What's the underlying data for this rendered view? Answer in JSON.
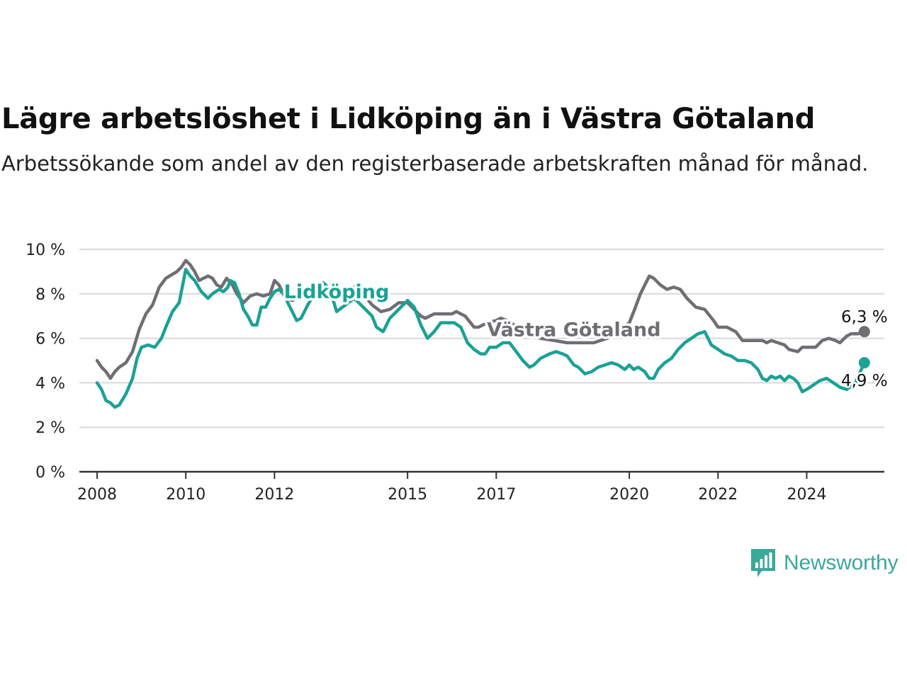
{
  "header": {
    "title": "Lägre arbetslöshet i Lidköping än i Västra Götaland",
    "subtitle": "Arbetssökande som andel av den registerbaserade arbetskraften månad för månad."
  },
  "brand": {
    "name": "Newsworthy",
    "icon": "newsworthy-logo-icon",
    "color": "#3aa89a"
  },
  "chart_data": {
    "type": "line",
    "title": "Lägre arbetslöshet i Lidköping än i Västra Götaland",
    "subtitle": "Arbetssökande som andel av den registerbaserade arbetskraften månad för månad.",
    "xlabel": "",
    "ylabel": "",
    "xlim": [
      2007.6,
      2025.75
    ],
    "ylim": [
      0,
      10
    ],
    "x_ticks": [
      2008,
      2010,
      2012,
      2015,
      2017,
      2020,
      2022,
      2024
    ],
    "x_tick_labels": [
      "2008",
      "2010",
      "2012",
      "2015",
      "2017",
      "2020",
      "2022",
      "2024"
    ],
    "y_ticks": [
      0,
      2,
      4,
      6,
      8,
      10
    ],
    "y_tick_labels": [
      "0 %",
      "2 %",
      "4 %",
      "6 %",
      "8 %",
      "10 %"
    ],
    "grid": true,
    "legend": "inline labels",
    "series": [
      {
        "name": "Västra Götaland",
        "color": "#6f6e73",
        "end_label": "6,3 %",
        "points": [
          [
            2008.0,
            5.0
          ],
          [
            2008.1,
            4.7
          ],
          [
            2008.2,
            4.5
          ],
          [
            2008.3,
            4.2
          ],
          [
            2008.4,
            4.5
          ],
          [
            2008.5,
            4.7
          ],
          [
            2008.65,
            4.9
          ],
          [
            2008.8,
            5.4
          ],
          [
            2008.95,
            6.4
          ],
          [
            2009.1,
            7.1
          ],
          [
            2009.25,
            7.5
          ],
          [
            2009.4,
            8.3
          ],
          [
            2009.55,
            8.7
          ],
          [
            2009.8,
            9.0
          ],
          [
            2009.9,
            9.2
          ],
          [
            2010.0,
            9.5
          ],
          [
            2010.1,
            9.3
          ],
          [
            2010.2,
            9.0
          ],
          [
            2010.3,
            8.6
          ],
          [
            2010.4,
            8.7
          ],
          [
            2010.5,
            8.8
          ],
          [
            2010.6,
            8.7
          ],
          [
            2010.7,
            8.4
          ],
          [
            2010.8,
            8.3
          ],
          [
            2010.92,
            8.7
          ],
          [
            2011.05,
            8.4
          ],
          [
            2011.15,
            8.0
          ],
          [
            2011.3,
            7.6
          ],
          [
            2011.45,
            7.9
          ],
          [
            2011.6,
            8.0
          ],
          [
            2011.75,
            7.9
          ],
          [
            2011.9,
            8.0
          ],
          [
            2012.0,
            8.6
          ],
          [
            2012.1,
            8.4
          ],
          [
            2012.25,
            7.8
          ],
          [
            2012.4,
            7.7
          ],
          [
            2012.6,
            7.9
          ],
          [
            2012.8,
            8.3
          ],
          [
            2013.0,
            8.5
          ],
          [
            2013.2,
            8.2
          ],
          [
            2013.4,
            8.1
          ],
          [
            2013.6,
            8.2
          ],
          [
            2013.8,
            8.3
          ],
          [
            2014.0,
            8.0
          ],
          [
            2014.2,
            7.5
          ],
          [
            2014.4,
            7.2
          ],
          [
            2014.6,
            7.3
          ],
          [
            2014.8,
            7.6
          ],
          [
            2015.0,
            7.6
          ],
          [
            2015.1,
            7.4
          ],
          [
            2015.3,
            7.0
          ],
          [
            2015.4,
            6.9
          ],
          [
            2015.6,
            7.1
          ],
          [
            2015.8,
            7.1
          ],
          [
            2016.0,
            7.1
          ],
          [
            2016.1,
            7.2
          ],
          [
            2016.3,
            7.0
          ],
          [
            2016.5,
            6.5
          ],
          [
            2016.6,
            6.5
          ],
          [
            2016.8,
            6.7
          ],
          [
            2017.0,
            6.8
          ],
          [
            2017.1,
            6.9
          ],
          [
            2017.25,
            6.8
          ],
          [
            2017.4,
            6.6
          ],
          [
            2017.6,
            6.4
          ],
          [
            2017.8,
            6.2
          ],
          [
            2018.0,
            6.0
          ],
          [
            2018.3,
            5.9
          ],
          [
            2018.6,
            5.8
          ],
          [
            2018.9,
            5.8
          ],
          [
            2019.2,
            5.8
          ],
          [
            2019.5,
            6.0
          ],
          [
            2019.8,
            6.4
          ],
          [
            2020.0,
            6.7
          ],
          [
            2020.1,
            7.2
          ],
          [
            2020.25,
            8.0
          ],
          [
            2020.45,
            8.8
          ],
          [
            2020.55,
            8.7
          ],
          [
            2020.7,
            8.4
          ],
          [
            2020.85,
            8.2
          ],
          [
            2021.0,
            8.3
          ],
          [
            2021.15,
            8.2
          ],
          [
            2021.3,
            7.8
          ],
          [
            2021.5,
            7.4
          ],
          [
            2021.7,
            7.3
          ],
          [
            2021.9,
            6.8
          ],
          [
            2022.0,
            6.5
          ],
          [
            2022.2,
            6.5
          ],
          [
            2022.4,
            6.3
          ],
          [
            2022.55,
            5.9
          ],
          [
            2022.8,
            5.9
          ],
          [
            2023.0,
            5.9
          ],
          [
            2023.1,
            5.8
          ],
          [
            2023.2,
            5.9
          ],
          [
            2023.35,
            5.8
          ],
          [
            2023.5,
            5.7
          ],
          [
            2023.6,
            5.5
          ],
          [
            2023.8,
            5.4
          ],
          [
            2023.9,
            5.6
          ],
          [
            2024.0,
            5.6
          ],
          [
            2024.2,
            5.6
          ],
          [
            2024.35,
            5.9
          ],
          [
            2024.5,
            6.0
          ],
          [
            2024.65,
            5.9
          ],
          [
            2024.75,
            5.8
          ],
          [
            2024.9,
            6.1
          ],
          [
            2025.0,
            6.2
          ],
          [
            2025.15,
            6.2
          ],
          [
            2025.3,
            6.3
          ]
        ]
      },
      {
        "name": "Lidköping",
        "color": "#1ba196",
        "end_label": "4,9 %",
        "points": [
          [
            2008.0,
            4.0
          ],
          [
            2008.1,
            3.7
          ],
          [
            2008.2,
            3.2
          ],
          [
            2008.3,
            3.1
          ],
          [
            2008.4,
            2.9
          ],
          [
            2008.5,
            3.0
          ],
          [
            2008.65,
            3.5
          ],
          [
            2008.8,
            4.2
          ],
          [
            2008.9,
            5.1
          ],
          [
            2009.0,
            5.6
          ],
          [
            2009.15,
            5.7
          ],
          [
            2009.3,
            5.6
          ],
          [
            2009.45,
            6.0
          ],
          [
            2009.55,
            6.5
          ],
          [
            2009.7,
            7.2
          ],
          [
            2009.85,
            7.6
          ],
          [
            2010.0,
            9.1
          ],
          [
            2010.1,
            8.8
          ],
          [
            2010.2,
            8.6
          ],
          [
            2010.35,
            8.1
          ],
          [
            2010.5,
            7.8
          ],
          [
            2010.6,
            8.0
          ],
          [
            2010.75,
            8.2
          ],
          [
            2010.85,
            8.1
          ],
          [
            2010.95,
            8.3
          ],
          [
            2011.0,
            8.6
          ],
          [
            2011.1,
            8.5
          ],
          [
            2011.2,
            8.0
          ],
          [
            2011.3,
            7.3
          ],
          [
            2011.4,
            7.0
          ],
          [
            2011.5,
            6.6
          ],
          [
            2011.6,
            6.6
          ],
          [
            2011.7,
            7.4
          ],
          [
            2011.8,
            7.4
          ],
          [
            2011.9,
            7.8
          ],
          [
            2012.0,
            8.1
          ],
          [
            2012.1,
            8.2
          ],
          [
            2012.2,
            8.0
          ],
          [
            2012.35,
            7.4
          ],
          [
            2012.5,
            6.8
          ],
          [
            2012.6,
            6.9
          ],
          [
            2012.75,
            7.5
          ],
          [
            2012.9,
            8.0
          ],
          [
            2013.1,
            8.5
          ],
          [
            2013.25,
            8.2
          ],
          [
            2013.4,
            7.2
          ],
          [
            2013.6,
            7.5
          ],
          [
            2013.8,
            7.8
          ],
          [
            2014.0,
            7.4
          ],
          [
            2014.2,
            7.0
          ],
          [
            2014.3,
            6.5
          ],
          [
            2014.45,
            6.3
          ],
          [
            2014.6,
            6.9
          ],
          [
            2014.75,
            7.2
          ],
          [
            2014.9,
            7.5
          ],
          [
            2015.0,
            7.7
          ],
          [
            2015.15,
            7.4
          ],
          [
            2015.3,
            6.6
          ],
          [
            2015.45,
            6.0
          ],
          [
            2015.6,
            6.3
          ],
          [
            2015.75,
            6.7
          ],
          [
            2015.9,
            6.7
          ],
          [
            2016.05,
            6.7
          ],
          [
            2016.2,
            6.5
          ],
          [
            2016.35,
            5.8
          ],
          [
            2016.5,
            5.5
          ],
          [
            2016.65,
            5.3
          ],
          [
            2016.75,
            5.3
          ],
          [
            2016.85,
            5.6
          ],
          [
            2017.0,
            5.6
          ],
          [
            2017.15,
            5.8
          ],
          [
            2017.3,
            5.8
          ],
          [
            2017.45,
            5.4
          ],
          [
            2017.6,
            5.0
          ],
          [
            2017.75,
            4.7
          ],
          [
            2017.85,
            4.8
          ],
          [
            2018.0,
            5.1
          ],
          [
            2018.2,
            5.3
          ],
          [
            2018.35,
            5.4
          ],
          [
            2018.5,
            5.3
          ],
          [
            2018.6,
            5.2
          ],
          [
            2018.75,
            4.8
          ],
          [
            2018.85,
            4.7
          ],
          [
            2019.0,
            4.4
          ],
          [
            2019.15,
            4.5
          ],
          [
            2019.3,
            4.7
          ],
          [
            2019.45,
            4.8
          ],
          [
            2019.6,
            4.9
          ],
          [
            2019.75,
            4.8
          ],
          [
            2019.9,
            4.6
          ],
          [
            2020.0,
            4.8
          ],
          [
            2020.1,
            4.6
          ],
          [
            2020.2,
            4.7
          ],
          [
            2020.35,
            4.5
          ],
          [
            2020.45,
            4.2
          ],
          [
            2020.55,
            4.2
          ],
          [
            2020.65,
            4.6
          ],
          [
            2020.8,
            4.9
          ],
          [
            2020.95,
            5.1
          ],
          [
            2021.1,
            5.5
          ],
          [
            2021.25,
            5.8
          ],
          [
            2021.4,
            6.0
          ],
          [
            2021.55,
            6.2
          ],
          [
            2021.7,
            6.3
          ],
          [
            2021.85,
            5.7
          ],
          [
            2022.0,
            5.5
          ],
          [
            2022.15,
            5.3
          ],
          [
            2022.3,
            5.2
          ],
          [
            2022.45,
            5.0
          ],
          [
            2022.6,
            5.0
          ],
          [
            2022.75,
            4.9
          ],
          [
            2022.9,
            4.6
          ],
          [
            2023.0,
            4.2
          ],
          [
            2023.1,
            4.1
          ],
          [
            2023.2,
            4.3
          ],
          [
            2023.3,
            4.2
          ],
          [
            2023.4,
            4.3
          ],
          [
            2023.5,
            4.1
          ],
          [
            2023.6,
            4.3
          ],
          [
            2023.7,
            4.2
          ],
          [
            2023.8,
            4.0
          ],
          [
            2023.9,
            3.6
          ],
          [
            2024.0,
            3.7
          ],
          [
            2024.15,
            3.9
          ],
          [
            2024.3,
            4.1
          ],
          [
            2024.45,
            4.2
          ],
          [
            2024.6,
            4.0
          ],
          [
            2024.75,
            3.8
          ],
          [
            2024.9,
            3.7
          ],
          [
            2025.1,
            4.0
          ],
          [
            2025.3,
            4.9
          ]
        ]
      }
    ]
  }
}
